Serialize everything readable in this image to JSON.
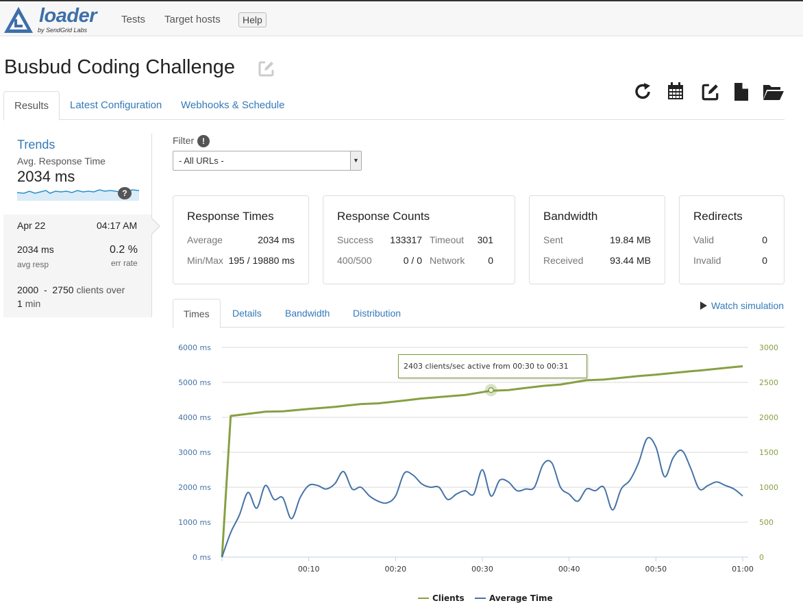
{
  "nav": {
    "logo_text": "loader",
    "logo_sub": "by SendGrid Labs",
    "tests": "Tests",
    "target_hosts": "Target hosts",
    "help": "Help"
  },
  "page": {
    "title": "Busbud Coding Challenge"
  },
  "toolbar": [
    "refresh-icon",
    "calendar-icon",
    "edit-icon",
    "document-icon",
    "folder-open-icon"
  ],
  "tabs": {
    "results": "Results",
    "latest_config": "Latest Configuration",
    "webhooks": "Webhooks & Schedule"
  },
  "sidebar": {
    "trends_title": "Trends",
    "metric_label": "Avg. Response Time",
    "metric_value": "2034 ms",
    "help": "?",
    "run": {
      "date": "Apr 22",
      "time": "04:17 AM",
      "avg_resp": "2034 ms",
      "avg_resp_label": "avg resp",
      "err_rate": "0.2 %",
      "err_rate_label": "err rate",
      "clients_from": "2000",
      "dash": "-",
      "clients_to": "2750",
      "clients_over": "clients over",
      "duration": "1",
      "duration_unit": "min"
    }
  },
  "filter": {
    "label": "Filter",
    "info": "!",
    "selected": "- All URLs -"
  },
  "cards": {
    "response_times": {
      "title": "Response Times",
      "avg_label": "Average",
      "avg_value": "2034 ms",
      "minmax_label": "Min/Max",
      "minmax_value": "195 / 19880 ms"
    },
    "response_counts": {
      "title": "Response Counts",
      "success_label": "Success",
      "success_value": "133317",
      "timeout_label": "Timeout",
      "timeout_value": "301",
      "err_label": "400/500",
      "err_value": "0 / 0",
      "network_label": "Network",
      "network_value": "0"
    },
    "bandwidth": {
      "title": "Bandwidth",
      "sent_label": "Sent",
      "sent_value": "19.84 MB",
      "received_label": "Received",
      "received_value": "93.44 MB"
    },
    "redirects": {
      "title": "Redirects",
      "valid_label": "Valid",
      "valid_value": "0",
      "invalid_label": "Invalid",
      "invalid_value": "0"
    }
  },
  "chart_tabs": {
    "times": "Times",
    "details": "Details",
    "bandwidth": "Bandwidth",
    "distribution": "Distribution",
    "watch": "Watch simulation"
  },
  "tooltip": "2403 clients/sec active from 00:30 to 00:31",
  "colors": {
    "clients": "#86a042",
    "avg_time": "#4572a7",
    "link": "#337ab7"
  },
  "chart_data": {
    "type": "line",
    "x_unit": "seconds",
    "x_ticks": [
      "00:10",
      "00:20",
      "00:30",
      "00:40",
      "00:50",
      "01:00"
    ],
    "y_left_ticks": [
      "0 ms",
      "1000 ms",
      "2000 ms",
      "3000 ms",
      "4000 ms",
      "5000 ms",
      "6000 ms"
    ],
    "y_right_ticks": [
      "0",
      "500",
      "1000",
      "1500",
      "2000",
      "2500",
      "3000"
    ],
    "y_left_range": [
      0,
      6000
    ],
    "y_right_range": [
      0,
      3000
    ],
    "x_range": [
      0,
      60
    ],
    "grid": true,
    "legend_position": "bottom",
    "series": [
      {
        "name": "Clients",
        "axis": "right",
        "x": [
          0,
          1,
          3,
          5,
          7,
          10,
          13,
          16,
          18,
          21,
          23,
          27,
          28,
          31,
          33,
          37,
          39,
          42,
          44,
          48,
          50,
          54,
          55,
          59,
          60
        ],
        "values": [
          0,
          2020,
          2050,
          2080,
          2085,
          2120,
          2150,
          2190,
          2200,
          2240,
          2270,
          2310,
          2320,
          2380,
          2390,
          2450,
          2470,
          2530,
          2540,
          2590,
          2610,
          2660,
          2670,
          2720,
          2730
        ]
      },
      {
        "name": "Average Time",
        "axis": "left",
        "x": [
          0,
          1,
          2,
          3,
          4,
          5,
          6,
          7,
          8,
          9,
          10,
          11,
          12,
          13,
          14,
          15,
          16,
          17,
          18,
          19,
          20,
          21,
          22,
          23,
          24,
          25,
          26,
          27,
          28,
          29,
          30,
          31,
          32,
          33,
          34,
          35,
          36,
          37,
          38,
          39,
          40,
          41,
          42,
          43,
          44,
          45,
          46,
          47,
          48,
          49,
          50,
          51,
          52,
          53,
          54,
          55,
          56,
          57,
          58,
          59,
          60
        ],
        "values": [
          0,
          700,
          1200,
          1850,
          1400,
          2050,
          1650,
          1700,
          1100,
          1700,
          2050,
          2050,
          1950,
          2100,
          2450,
          1950,
          2000,
          1750,
          1600,
          1550,
          1750,
          2400,
          2350,
          2100,
          2000,
          2000,
          1650,
          1800,
          1900,
          1800,
          2500,
          1750,
          2200,
          2150,
          1900,
          1950,
          2000,
          2650,
          2700,
          2000,
          1800,
          1600,
          1950,
          1900,
          2000,
          1350,
          1950,
          2200,
          2700,
          3400,
          3150,
          2300,
          2850,
          3050,
          2550,
          1950,
          2050,
          2150,
          2050,
          1950,
          1750
        ]
      }
    ]
  }
}
